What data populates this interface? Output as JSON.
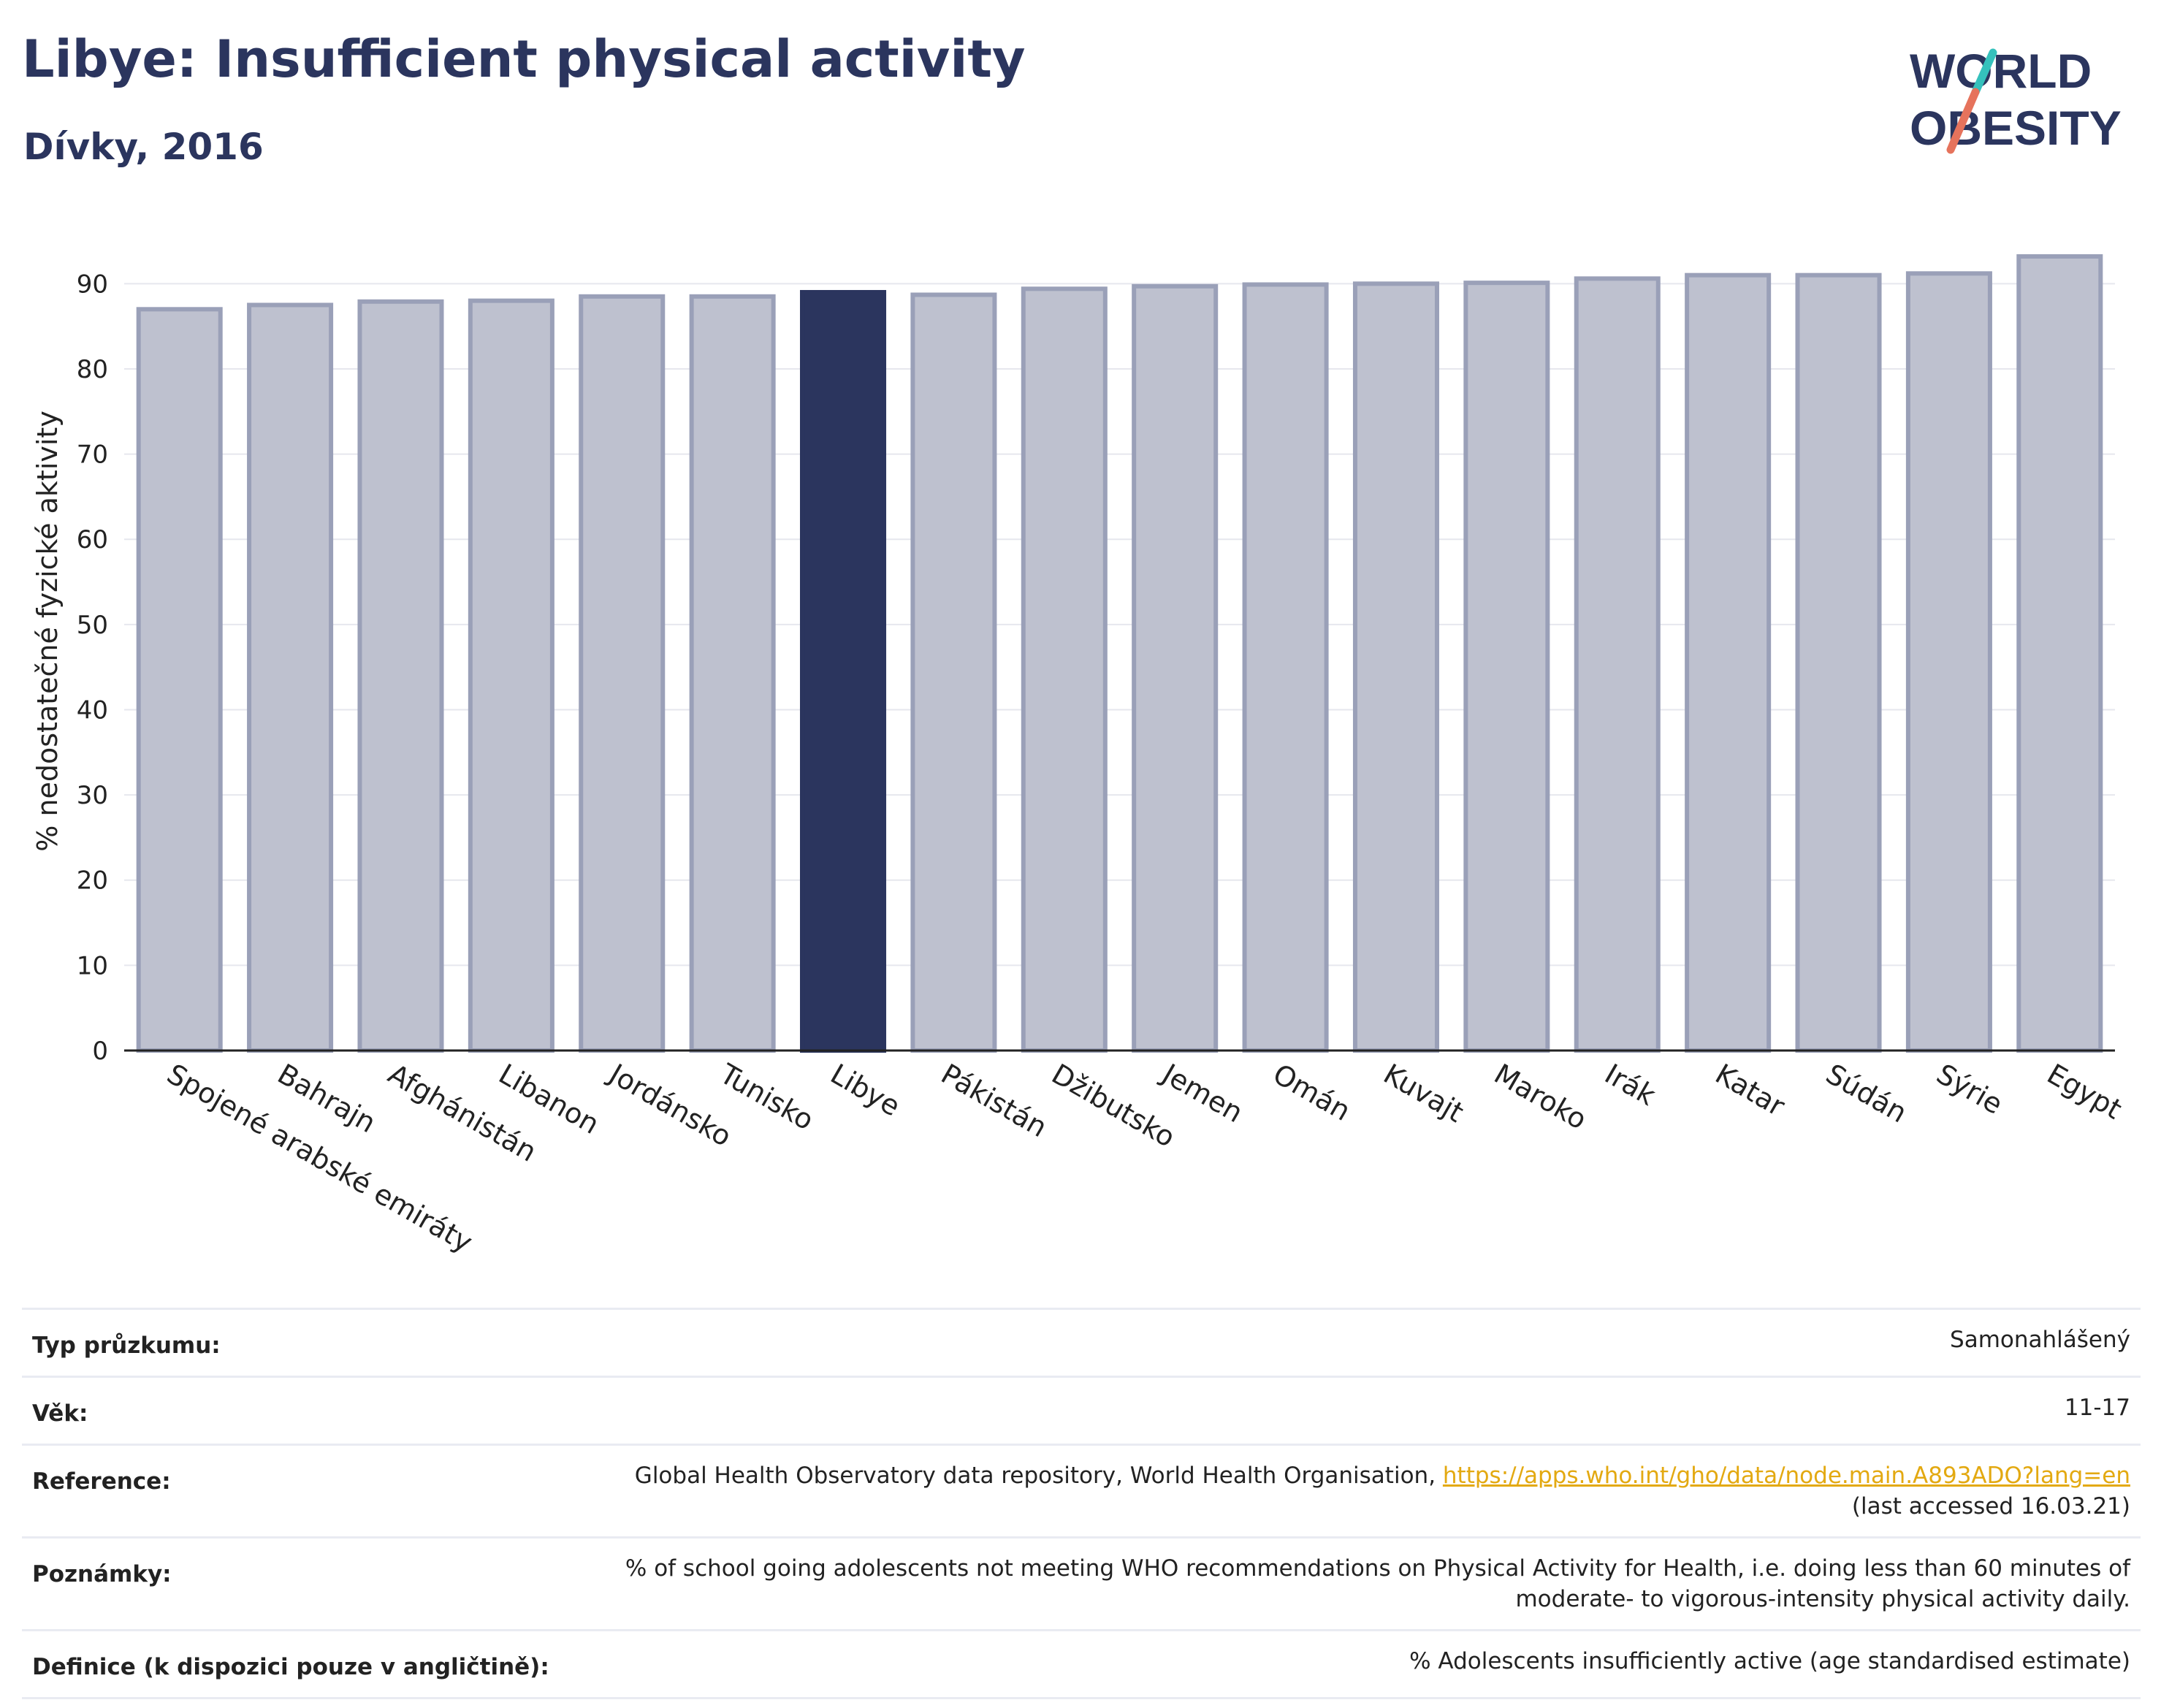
{
  "header": {
    "title": "Libye: Insufficient physical activity",
    "subtitle": "Dívky, 2016"
  },
  "logo": {
    "line1": "WORLD",
    "line2": "OBESITY"
  },
  "chart_data": {
    "type": "bar",
    "ylabel": "% nedostatečné fyzické aktivity",
    "xlabel": "",
    "ylim": [
      0,
      95
    ],
    "yticks": [
      0,
      10,
      20,
      30,
      40,
      50,
      60,
      70,
      80,
      90
    ],
    "grid": true,
    "highlight": "Libye",
    "colors": {
      "highlight": "#2b355e",
      "bar": "#bec1cf",
      "bar_edge": "#9aa0b8"
    },
    "categories": [
      "Spojené arabské emiráty",
      "Bahrajn",
      "Afghánistán",
      "Libanon",
      "Jordánsko",
      "Tunisko",
      "Libye",
      "Pákistán",
      "Džibutsko",
      "Jemen",
      "Omán",
      "Kuvajt",
      "Maroko",
      "Irák",
      "Katar",
      "Súdán",
      "Sýrie",
      "Egypt"
    ],
    "values": [
      87.0,
      87.5,
      87.9,
      88.0,
      88.5,
      88.5,
      89.0,
      88.7,
      89.4,
      89.7,
      89.9,
      90.0,
      90.1,
      90.6,
      91.0,
      91.0,
      91.2,
      93.2
    ]
  },
  "meta": {
    "survey_type_label": "Typ průzkumu:",
    "survey_type_value": "Samonahlášený",
    "age_label": "Věk:",
    "age_value": "11-17",
    "reference_label": "Reference:",
    "reference_text": "Global Health Observatory data repository, World Health Organisation,",
    "reference_link": "https://apps.who.int/gho/data/node.main.A893ADO?lang=en",
    "reference_accessed": "(last accessed 16.03.21)",
    "notes_label": "Poznámky:",
    "notes_line1": "% of school going adolescents not meeting WHO recommendations on Physical Activity for Health, i.e. doing less than 60 minutes of",
    "notes_line2": "moderate- to vigorous-intensity physical activity daily.",
    "definition_label": "Definice (k dispozici pouze v angličtině):",
    "definition_value": "% Adolescents insufficiently active (age standardised estimate)"
  }
}
